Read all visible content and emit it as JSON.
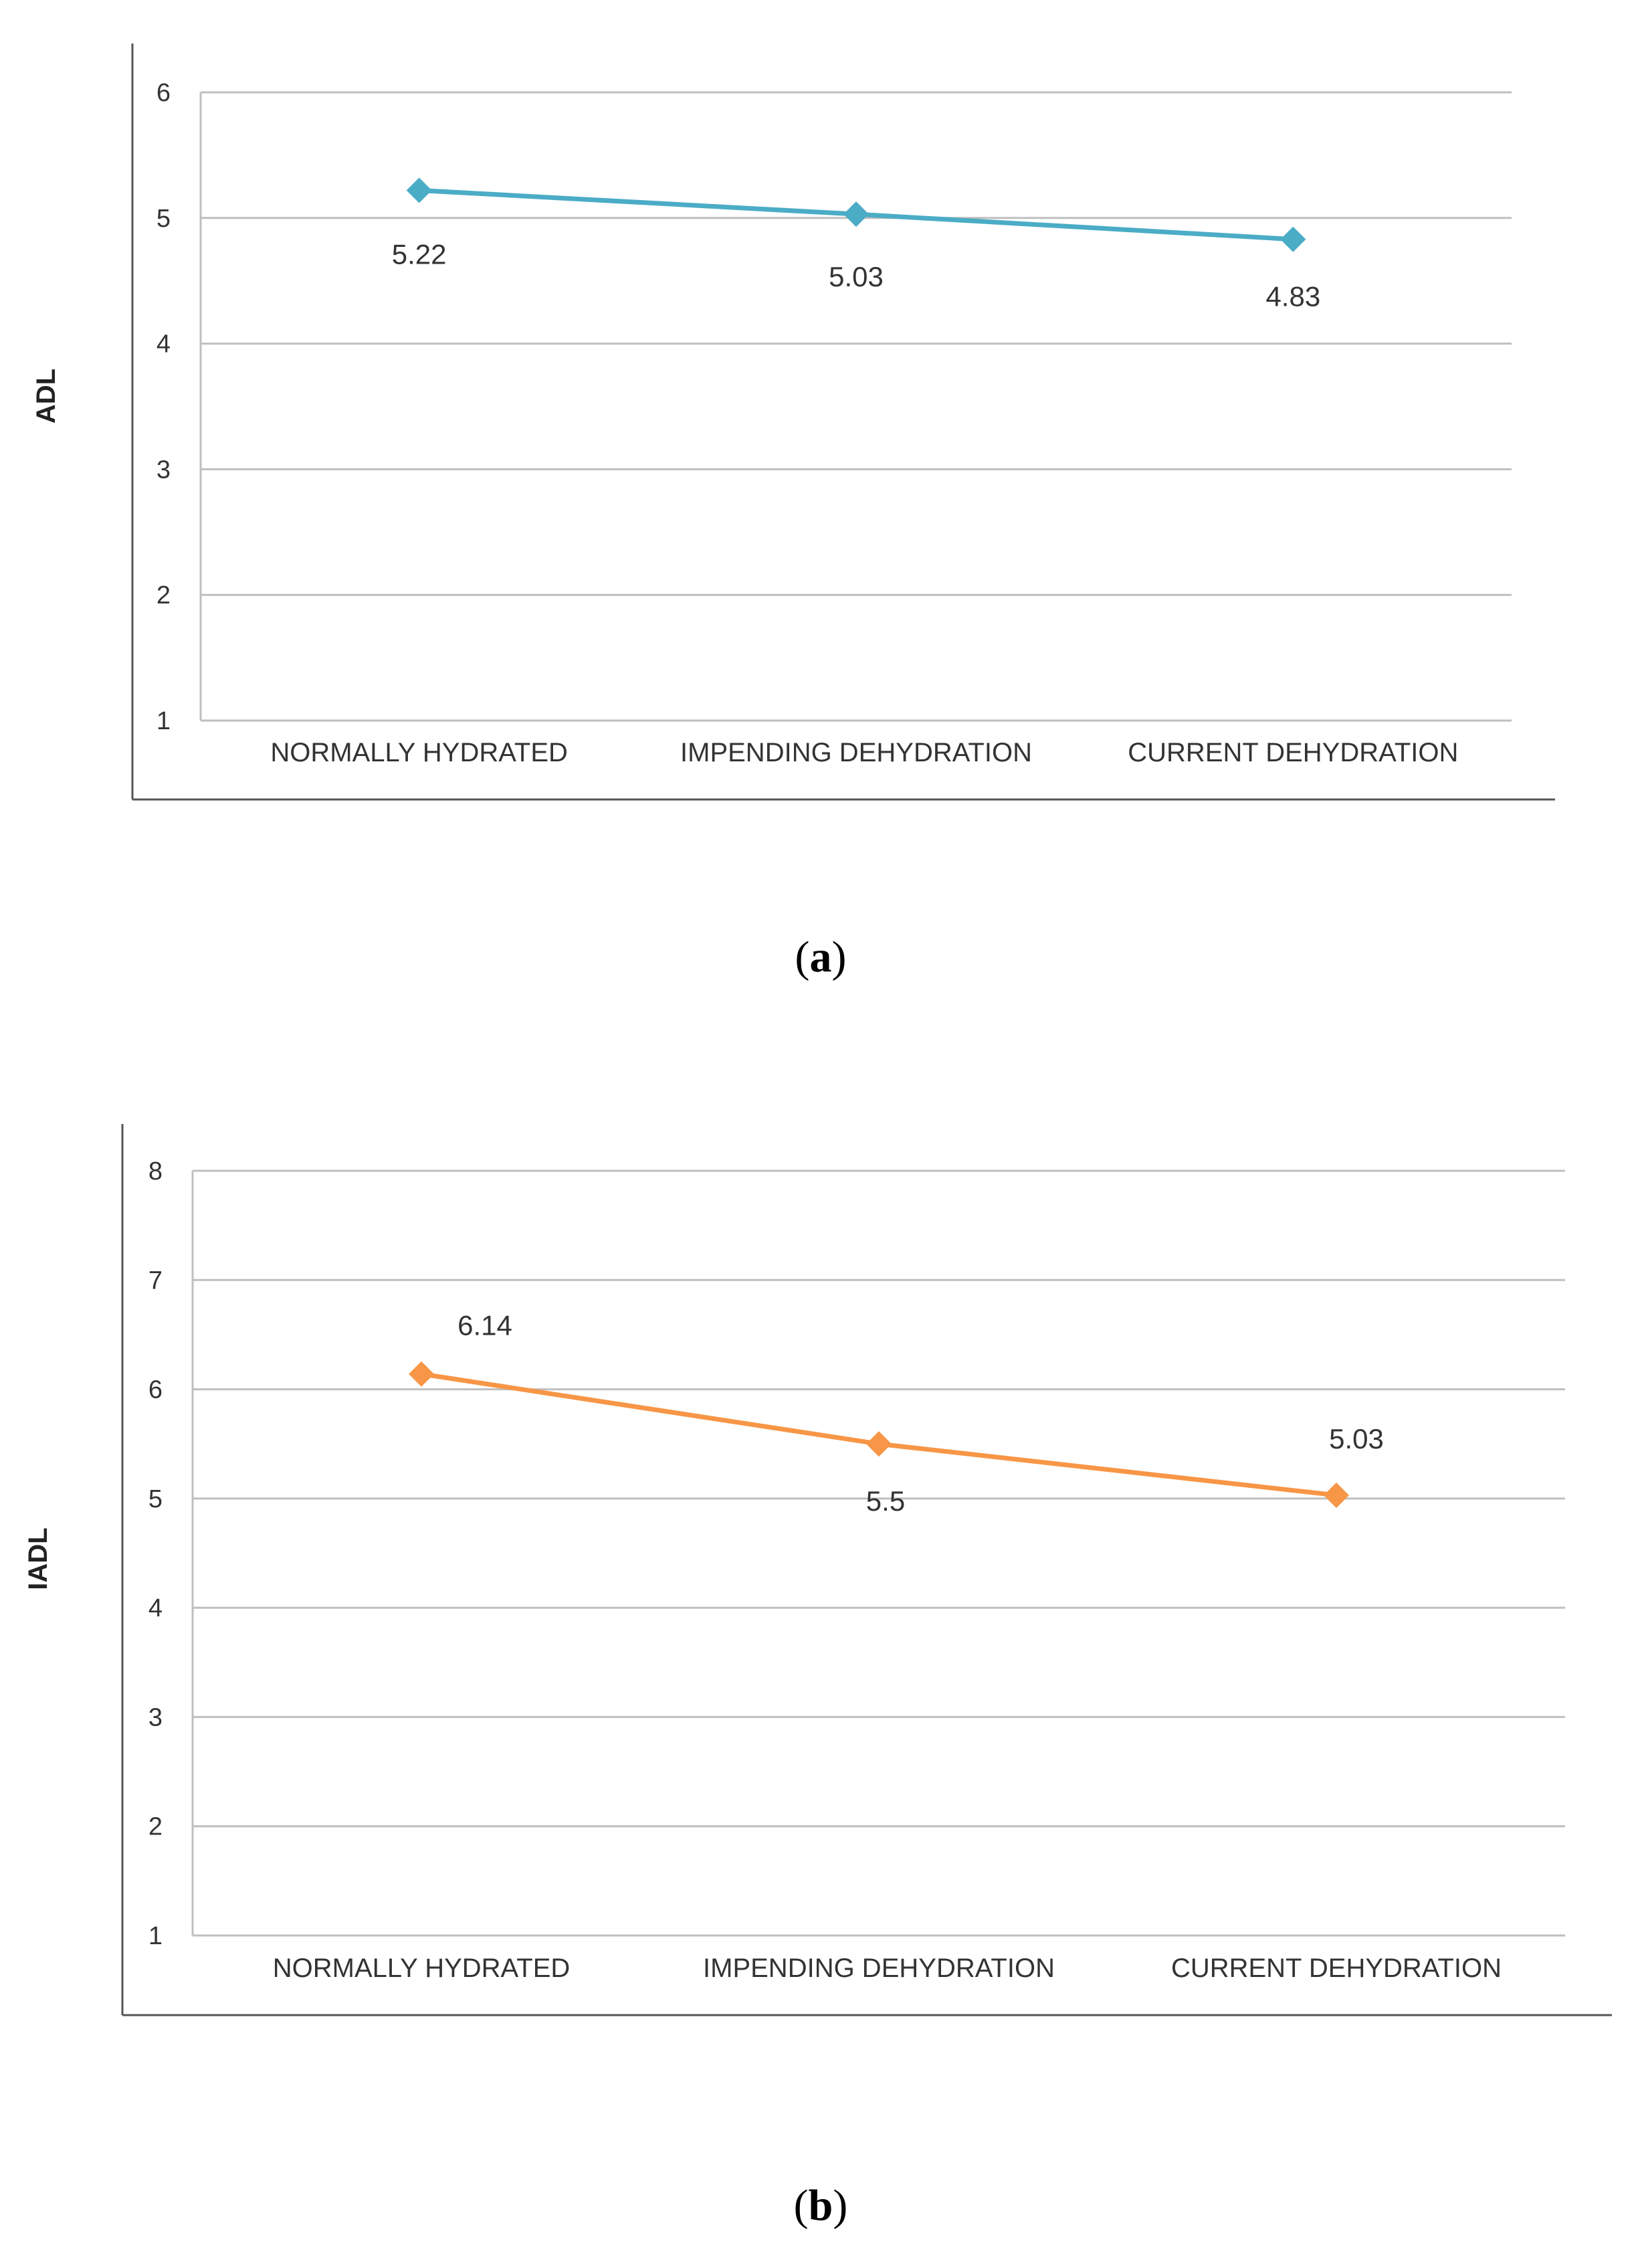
{
  "chart_data": [
    {
      "type": "line",
      "panel_label": "a",
      "categories": [
        "NORMALLY HYDRATED",
        "IMPENDING DEHYDRATION",
        "CURRENT DEHYDRATION"
      ],
      "series": [
        {
          "values": [
            5.22,
            5.03,
            4.83
          ],
          "color": "#4bacc6"
        }
      ],
      "data_labels": [
        "5.22",
        "5.03",
        "4.83"
      ],
      "title": "",
      "xlabel": "",
      "ylabel": "ADL",
      "ylim": [
        1,
        6
      ],
      "yticks": [
        1,
        2,
        3,
        4,
        5,
        6
      ],
      "grid": true,
      "legend": "none",
      "marker": "diamond"
    },
    {
      "type": "line",
      "panel_label": "b",
      "categories": [
        "NORMALLY HYDRATED",
        "IMPENDING DEHYDRATION",
        "CURRENT DEHYDRATION"
      ],
      "series": [
        {
          "values": [
            6.14,
            5.5,
            5.03
          ],
          "color": "#f79646"
        }
      ],
      "data_labels": [
        "6.14",
        "5.5",
        "5.03"
      ],
      "title": "",
      "xlabel": "",
      "ylabel": "IADL",
      "ylim": [
        1,
        8
      ],
      "yticks": [
        1,
        2,
        3,
        4,
        5,
        6,
        7,
        8
      ],
      "grid": true,
      "legend": "none",
      "marker": "diamond"
    }
  ]
}
